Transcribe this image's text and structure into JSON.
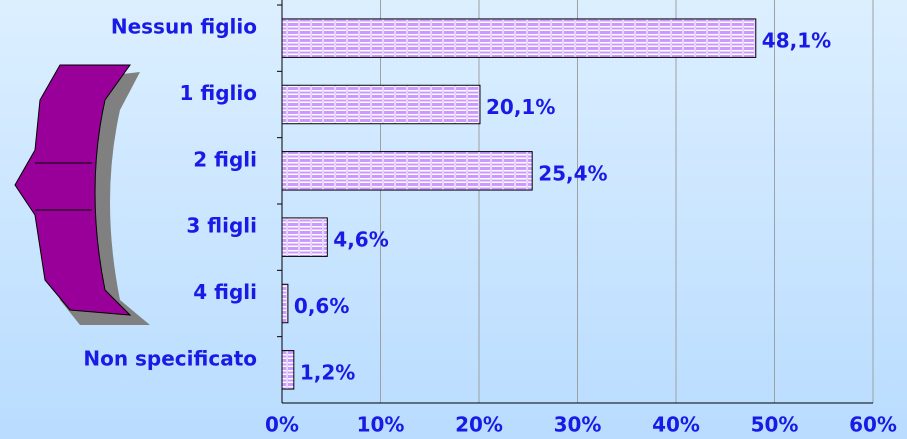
{
  "chart_data": {
    "type": "hbar",
    "categories": [
      "Nessun figlio",
      "1 figlio",
      "2 figli",
      "3 fligli",
      "4 figli",
      "Non specificato"
    ],
    "values": [
      48.1,
      20.1,
      25.4,
      4.6,
      0.6,
      1.2
    ],
    "value_labels": [
      "48,1%",
      "20,1%",
      "25,4%",
      "4,6%",
      "0,6%",
      "1,2%"
    ],
    "color": "#cc99ff",
    "xlim": [
      0,
      60
    ],
    "xticks": [
      {
        "value": 0,
        "label": "0%"
      },
      {
        "value": 10,
        "label": "10%"
      },
      {
        "value": 20,
        "label": "20%"
      },
      {
        "value": 30,
        "label": "30%"
      },
      {
        "value": 40,
        "label": "40%"
      },
      {
        "value": 50,
        "label": "50%"
      },
      {
        "value": 60,
        "label": "60%"
      }
    ],
    "grid": true
  }
}
